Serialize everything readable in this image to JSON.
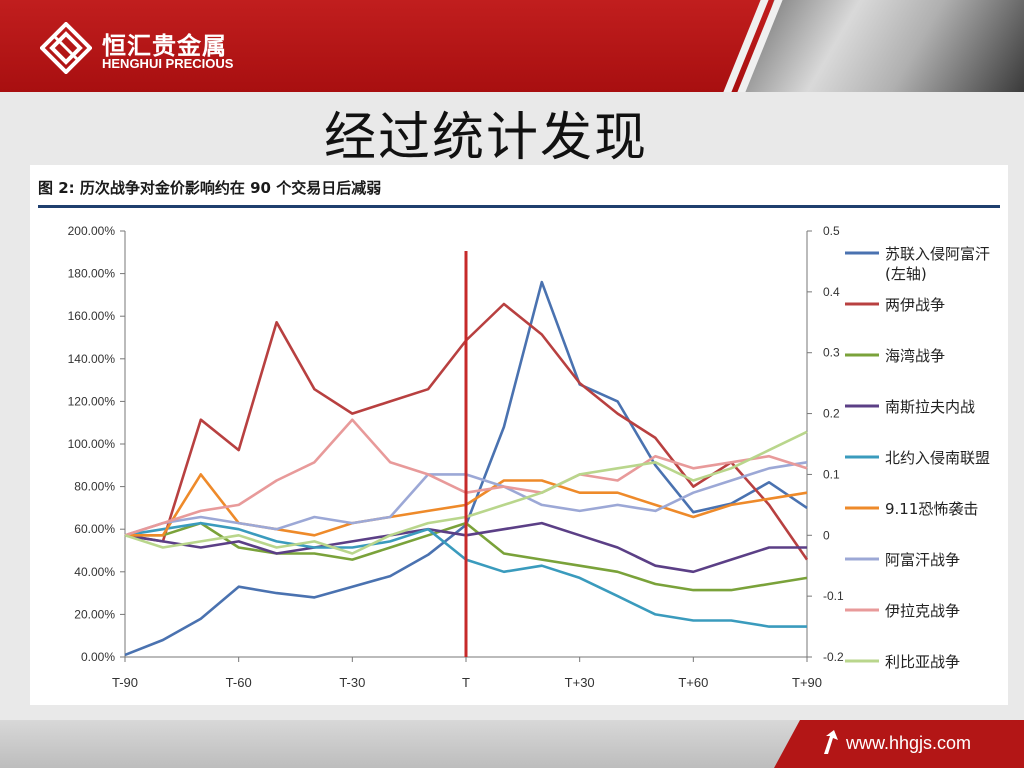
{
  "header": {
    "brand_cn": "恒汇贵金属",
    "brand_en": "HENGHUI PRECIOUS"
  },
  "slide_title": "经过统计发现",
  "figure_title": "图 2:  历次战争对金价影响约在 90 个交易日后减弱",
  "footer": {
    "url": "www.hhgjs.com"
  },
  "colors": {
    "header_red": "#b31616",
    "title_rule": "#1f3f6e"
  },
  "chart_data": {
    "type": "line",
    "x_categories": [
      "T-90",
      "T-60",
      "T-30",
      "T",
      "T+30",
      "T+60",
      "T+90"
    ],
    "x": [
      -90,
      -80,
      -70,
      -60,
      -50,
      -40,
      -30,
      -20,
      -10,
      0,
      10,
      20,
      30,
      40,
      50,
      60,
      70,
      80,
      90
    ],
    "x_tick_values": [
      -90,
      -60,
      -30,
      0,
      30,
      60,
      90
    ],
    "y_left": {
      "ticks": [
        "0.00%",
        "20.00%",
        "40.00%",
        "60.00%",
        "80.00%",
        "100.00%",
        "120.00%",
        "140.00%",
        "160.00%",
        "180.00%",
        "200.00%"
      ],
      "range": [
        0,
        200
      ]
    },
    "y_right": {
      "ticks": [
        "-0.2",
        "-0.1",
        "0",
        "0.1",
        "0.2",
        "0.3",
        "0.4",
        "0.5"
      ],
      "range": [
        -0.2,
        0.5
      ]
    },
    "event_marker_x": 0,
    "legend_position": "right",
    "series": [
      {
        "name": "苏联入侵阿富汗\n(左轴)",
        "axis": "left",
        "color": "#4a72b0",
        "values": [
          1,
          8,
          18,
          33,
          30,
          28,
          33,
          38,
          48,
          62,
          108,
          176,
          128,
          120,
          90,
          68,
          72,
          82,
          70
        ]
      },
      {
        "name": "两伊战争",
        "axis": "right",
        "color": "#b84040",
        "values": [
          0,
          -0.01,
          0.19,
          0.14,
          0.35,
          0.24,
          0.2,
          0.22,
          0.24,
          0.32,
          0.38,
          0.33,
          0.25,
          0.2,
          0.16,
          0.08,
          0.12,
          0.05,
          -0.04
        ]
      },
      {
        "name": "海湾战争",
        "axis": "right",
        "color": "#7aa23a",
        "values": [
          0,
          0.0,
          0.02,
          -0.02,
          -0.03,
          -0.03,
          -0.04,
          -0.02,
          0.0,
          0.02,
          -0.03,
          -0.04,
          -0.05,
          -0.06,
          -0.08,
          -0.09,
          -0.09,
          -0.08,
          -0.07
        ]
      },
      {
        "name": "南斯拉夫内战",
        "axis": "right",
        "color": "#5b3f86",
        "values": [
          0,
          -0.01,
          -0.02,
          -0.01,
          -0.03,
          -0.02,
          -0.01,
          0.0,
          0.01,
          0.0,
          0.01,
          0.02,
          0.0,
          -0.02,
          -0.05,
          -0.06,
          -0.04,
          -0.02,
          -0.02
        ]
      },
      {
        "name": "北约入侵南联盟",
        "axis": "right",
        "color": "#3a9bbd",
        "values": [
          0,
          0.01,
          0.02,
          0.01,
          -0.01,
          -0.02,
          -0.02,
          -0.01,
          0.01,
          -0.04,
          -0.06,
          -0.05,
          -0.07,
          -0.1,
          -0.13,
          -0.14,
          -0.14,
          -0.15,
          -0.15
        ]
      },
      {
        "name": "9.11恐怖袭击",
        "axis": "right",
        "color": "#ee8a2a",
        "values": [
          0,
          0.0,
          0.1,
          0.02,
          0.01,
          0.0,
          0.02,
          0.03,
          0.04,
          0.05,
          0.09,
          0.09,
          0.07,
          0.07,
          0.05,
          0.03,
          0.05,
          0.06,
          0.07
        ]
      },
      {
        "name": "阿富汗战争",
        "axis": "right",
        "color": "#9ca8d6",
        "values": [
          0,
          0.02,
          0.03,
          0.02,
          0.01,
          0.03,
          0.02,
          0.03,
          0.1,
          0.1,
          0.08,
          0.05,
          0.04,
          0.05,
          0.04,
          0.07,
          0.09,
          0.11,
          0.12
        ]
      },
      {
        "name": "伊拉克战争",
        "axis": "right",
        "color": "#e89a9a",
        "values": [
          0,
          0.02,
          0.04,
          0.05,
          0.09,
          0.12,
          0.19,
          0.12,
          0.1,
          0.07,
          0.08,
          0.07,
          0.1,
          0.09,
          0.13,
          0.11,
          0.12,
          0.13,
          0.11
        ]
      },
      {
        "name": "利比亚战争",
        "axis": "right",
        "color": "#b9d68c",
        "values": [
          0,
          -0.02,
          -0.01,
          0.0,
          -0.02,
          -0.01,
          -0.03,
          0.0,
          0.02,
          0.03,
          0.05,
          0.07,
          0.1,
          0.11,
          0.12,
          0.09,
          0.11,
          0.14,
          0.17
        ]
      }
    ]
  }
}
